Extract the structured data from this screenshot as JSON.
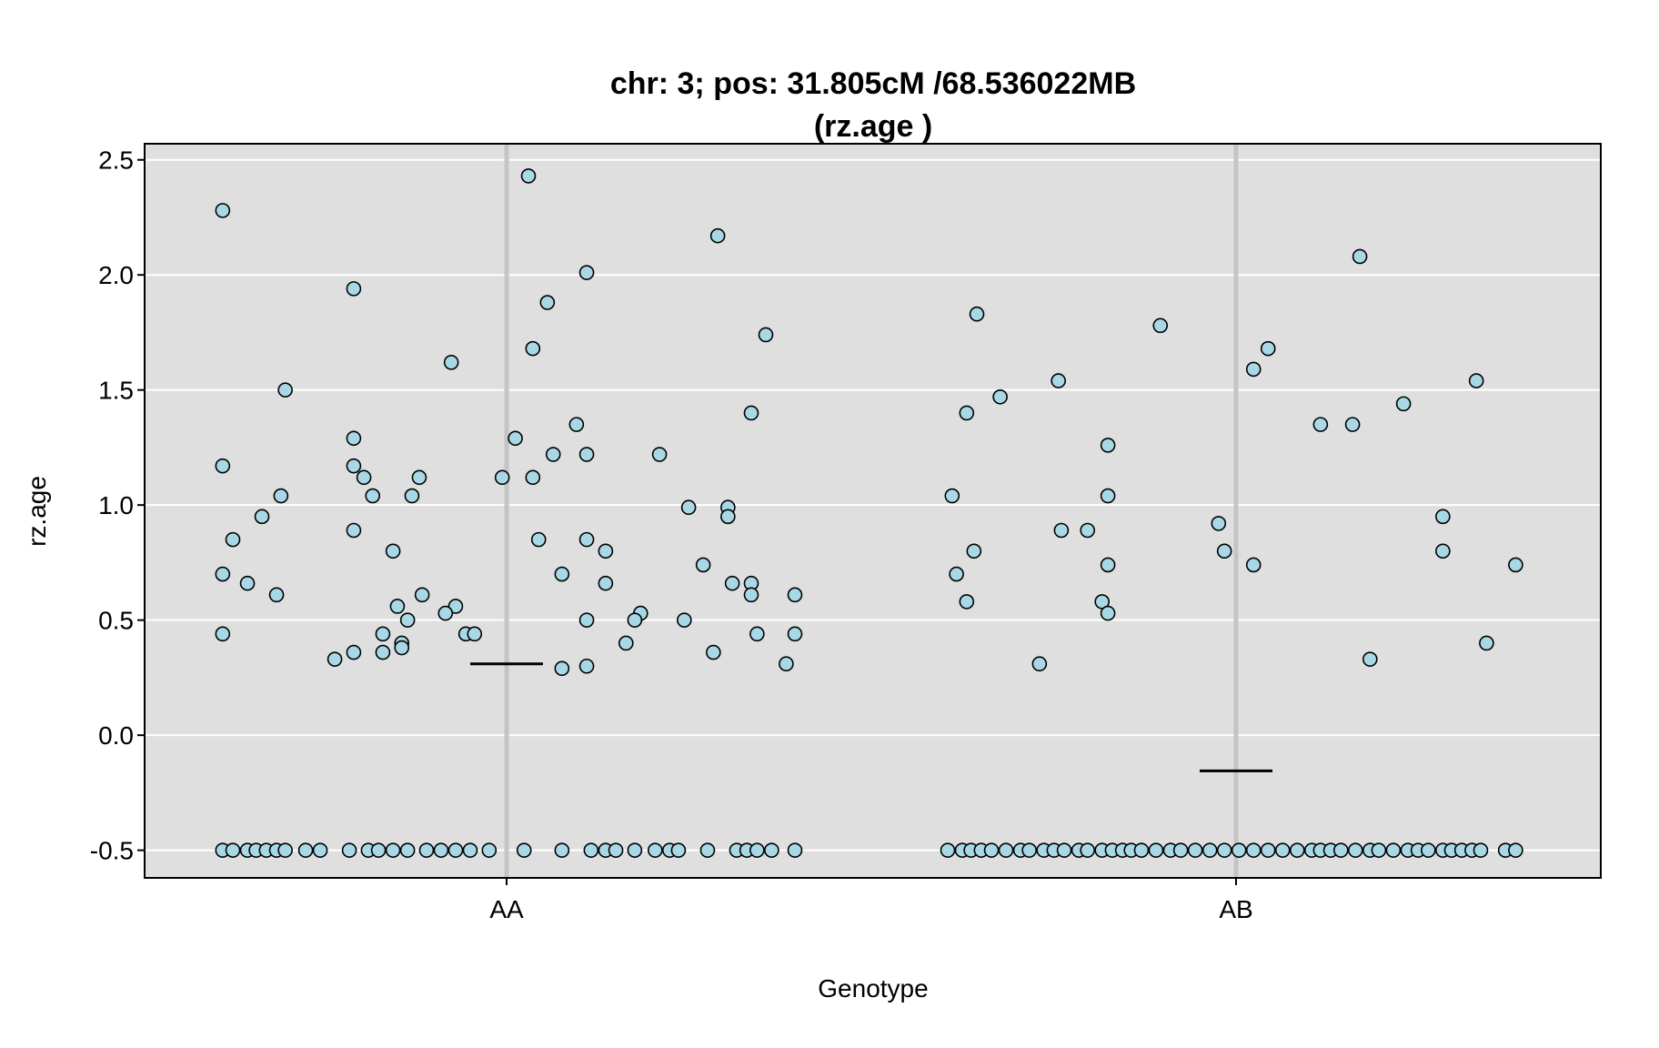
{
  "chart_data": {
    "type": "scatter",
    "title_line1": "chr: 3; pos: 31.805cM /68.536022MB",
    "title_line2": "(rz.age )",
    "xlabel": "Genotype",
    "ylabel": "rz.age",
    "categories": [
      "AA",
      "AB"
    ],
    "ylim": [
      -0.62,
      2.57
    ],
    "yticks": [
      -0.5,
      0.0,
      0.5,
      1.0,
      1.5,
      2.0,
      2.5
    ],
    "ytick_labels": [
      "-0.5",
      "0.0",
      "0.5",
      "1.0",
      "1.5",
      "2.0",
      "2.5"
    ],
    "grid": true,
    "colors": {
      "panel_bg": "#dfdfdf",
      "grid": "#ffffff",
      "category_line": "#c4c4c4",
      "point_fill": "#a8d8e6",
      "point_stroke": "#000000",
      "mean_line": "#000000"
    },
    "means": [
      {
        "category": "AA",
        "value": 0.31
      },
      {
        "category": "AB",
        "value": -0.155
      }
    ],
    "series": [
      {
        "category": "AA",
        "points": [
          {
            "x": -0.195,
            "y": 2.28
          },
          {
            "x": 0.015,
            "y": 2.43
          },
          {
            "x": 0.145,
            "y": 2.17
          },
          {
            "x": -0.105,
            "y": 1.94
          },
          {
            "x": 0.055,
            "y": 2.01
          },
          {
            "x": 0.028,
            "y": 1.88
          },
          {
            "x": 0.178,
            "y": 1.74
          },
          {
            "x": -0.038,
            "y": 1.62
          },
          {
            "x": 0.018,
            "y": 1.68
          },
          {
            "x": -0.152,
            "y": 1.5
          },
          {
            "x": 0.168,
            "y": 1.4
          },
          {
            "x": 0.048,
            "y": 1.35
          },
          {
            "x": -0.105,
            "y": 1.29
          },
          {
            "x": 0.006,
            "y": 1.29
          },
          {
            "x": -0.195,
            "y": 1.17
          },
          {
            "x": -0.105,
            "y": 1.17
          },
          {
            "x": 0.032,
            "y": 1.22
          },
          {
            "x": 0.055,
            "y": 1.22
          },
          {
            "x": 0.105,
            "y": 1.22
          },
          {
            "x": -0.098,
            "y": 1.12
          },
          {
            "x": -0.06,
            "y": 1.12
          },
          {
            "x": -0.003,
            "y": 1.12
          },
          {
            "x": 0.018,
            "y": 1.12
          },
          {
            "x": -0.155,
            "y": 1.04
          },
          {
            "x": -0.092,
            "y": 1.04
          },
          {
            "x": -0.065,
            "y": 1.04
          },
          {
            "x": 0.125,
            "y": 0.99
          },
          {
            "x": 0.152,
            "y": 0.99
          },
          {
            "x": -0.168,
            "y": 0.95
          },
          {
            "x": 0.152,
            "y": 0.95
          },
          {
            "x": -0.105,
            "y": 0.89
          },
          {
            "x": -0.188,
            "y": 0.85
          },
          {
            "x": 0.022,
            "y": 0.85
          },
          {
            "x": 0.055,
            "y": 0.85
          },
          {
            "x": -0.078,
            "y": 0.8
          },
          {
            "x": 0.068,
            "y": 0.8
          },
          {
            "x": 0.135,
            "y": 0.74
          },
          {
            "x": -0.195,
            "y": 0.7
          },
          {
            "x": 0.038,
            "y": 0.7
          },
          {
            "x": -0.178,
            "y": 0.66
          },
          {
            "x": 0.068,
            "y": 0.66
          },
          {
            "x": 0.155,
            "y": 0.66
          },
          {
            "x": 0.168,
            "y": 0.66
          },
          {
            "x": -0.158,
            "y": 0.61
          },
          {
            "x": -0.058,
            "y": 0.61
          },
          {
            "x": 0.168,
            "y": 0.61
          },
          {
            "x": 0.198,
            "y": 0.61
          },
          {
            "x": -0.075,
            "y": 0.56
          },
          {
            "x": -0.035,
            "y": 0.56
          },
          {
            "x": 0.092,
            "y": 0.53
          },
          {
            "x": -0.042,
            "y": 0.53
          },
          {
            "x": -0.068,
            "y": 0.5
          },
          {
            "x": 0.055,
            "y": 0.5
          },
          {
            "x": 0.088,
            "y": 0.5
          },
          {
            "x": 0.122,
            "y": 0.5
          },
          {
            "x": -0.195,
            "y": 0.44
          },
          {
            "x": -0.085,
            "y": 0.44
          },
          {
            "x": -0.028,
            "y": 0.44
          },
          {
            "x": -0.022,
            "y": 0.44
          },
          {
            "x": 0.172,
            "y": 0.44
          },
          {
            "x": 0.198,
            "y": 0.44
          },
          {
            "x": -0.072,
            "y": 0.4
          },
          {
            "x": 0.082,
            "y": 0.4
          },
          {
            "x": -0.072,
            "y": 0.38
          },
          {
            "x": -0.105,
            "y": 0.36
          },
          {
            "x": -0.085,
            "y": 0.36
          },
          {
            "x": 0.142,
            "y": 0.36
          },
          {
            "x": -0.118,
            "y": 0.33
          },
          {
            "x": 0.192,
            "y": 0.31
          },
          {
            "x": 0.055,
            "y": 0.3
          },
          {
            "x": 0.038,
            "y": 0.29
          },
          {
            "x": -0.195,
            "y": -0.5
          },
          {
            "x": -0.188,
            "y": -0.5
          },
          {
            "x": -0.178,
            "y": -0.5
          },
          {
            "x": -0.172,
            "y": -0.5
          },
          {
            "x": -0.165,
            "y": -0.5
          },
          {
            "x": -0.158,
            "y": -0.5
          },
          {
            "x": -0.152,
            "y": -0.5
          },
          {
            "x": -0.138,
            "y": -0.5
          },
          {
            "x": -0.128,
            "y": -0.5
          },
          {
            "x": -0.108,
            "y": -0.5
          },
          {
            "x": -0.095,
            "y": -0.5
          },
          {
            "x": -0.088,
            "y": -0.5
          },
          {
            "x": -0.078,
            "y": -0.5
          },
          {
            "x": -0.068,
            "y": -0.5
          },
          {
            "x": -0.055,
            "y": -0.5
          },
          {
            "x": -0.045,
            "y": -0.5
          },
          {
            "x": -0.035,
            "y": -0.5
          },
          {
            "x": -0.025,
            "y": -0.5
          },
          {
            "x": -0.012,
            "y": -0.5
          },
          {
            "x": 0.012,
            "y": -0.5
          },
          {
            "x": 0.038,
            "y": -0.5
          },
          {
            "x": 0.058,
            "y": -0.5
          },
          {
            "x": 0.068,
            "y": -0.5
          },
          {
            "x": 0.075,
            "y": -0.5
          },
          {
            "x": 0.088,
            "y": -0.5
          },
          {
            "x": 0.102,
            "y": -0.5
          },
          {
            "x": 0.112,
            "y": -0.5
          },
          {
            "x": 0.118,
            "y": -0.5
          },
          {
            "x": 0.138,
            "y": -0.5
          },
          {
            "x": 0.158,
            "y": -0.5
          },
          {
            "x": 0.165,
            "y": -0.5
          },
          {
            "x": 0.172,
            "y": -0.5
          },
          {
            "x": 0.182,
            "y": -0.5
          },
          {
            "x": 0.198,
            "y": -0.5
          }
        ]
      },
      {
        "category": "AB",
        "points": [
          {
            "x": 0.085,
            "y": 2.08
          },
          {
            "x": -0.178,
            "y": 1.83
          },
          {
            "x": -0.052,
            "y": 1.78
          },
          {
            "x": 0.022,
            "y": 1.68
          },
          {
            "x": 0.012,
            "y": 1.59
          },
          {
            "x": -0.122,
            "y": 1.54
          },
          {
            "x": 0.165,
            "y": 1.54
          },
          {
            "x": -0.162,
            "y": 1.47
          },
          {
            "x": 0.115,
            "y": 1.44
          },
          {
            "x": -0.185,
            "y": 1.4
          },
          {
            "x": 0.058,
            "y": 1.35
          },
          {
            "x": 0.08,
            "y": 1.35
          },
          {
            "x": -0.088,
            "y": 1.26
          },
          {
            "x": -0.195,
            "y": 1.04
          },
          {
            "x": -0.088,
            "y": 1.04
          },
          {
            "x": 0.142,
            "y": 0.95
          },
          {
            "x": -0.012,
            "y": 0.92
          },
          {
            "x": -0.12,
            "y": 0.89
          },
          {
            "x": -0.102,
            "y": 0.89
          },
          {
            "x": -0.18,
            "y": 0.8
          },
          {
            "x": -0.008,
            "y": 0.8
          },
          {
            "x": 0.142,
            "y": 0.8
          },
          {
            "x": -0.088,
            "y": 0.74
          },
          {
            "x": 0.012,
            "y": 0.74
          },
          {
            "x": 0.192,
            "y": 0.74
          },
          {
            "x": -0.192,
            "y": 0.7
          },
          {
            "x": -0.185,
            "y": 0.58
          },
          {
            "x": -0.092,
            "y": 0.58
          },
          {
            "x": -0.088,
            "y": 0.53
          },
          {
            "x": 0.172,
            "y": 0.4
          },
          {
            "x": 0.092,
            "y": 0.33
          },
          {
            "x": -0.135,
            "y": 0.31
          },
          {
            "x": -0.198,
            "y": -0.5
          },
          {
            "x": -0.188,
            "y": -0.5
          },
          {
            "x": -0.182,
            "y": -0.5
          },
          {
            "x": -0.175,
            "y": -0.5
          },
          {
            "x": -0.168,
            "y": -0.5
          },
          {
            "x": -0.158,
            "y": -0.5
          },
          {
            "x": -0.148,
            "y": -0.5
          },
          {
            "x": -0.142,
            "y": -0.5
          },
          {
            "x": -0.132,
            "y": -0.5
          },
          {
            "x": -0.125,
            "y": -0.5
          },
          {
            "x": -0.118,
            "y": -0.5
          },
          {
            "x": -0.108,
            "y": -0.5
          },
          {
            "x": -0.102,
            "y": -0.5
          },
          {
            "x": -0.092,
            "y": -0.5
          },
          {
            "x": -0.085,
            "y": -0.5
          },
          {
            "x": -0.078,
            "y": -0.5
          },
          {
            "x": -0.072,
            "y": -0.5
          },
          {
            "x": -0.065,
            "y": -0.5
          },
          {
            "x": -0.055,
            "y": -0.5
          },
          {
            "x": -0.045,
            "y": -0.5
          },
          {
            "x": -0.038,
            "y": -0.5
          },
          {
            "x": -0.028,
            "y": -0.5
          },
          {
            "x": -0.018,
            "y": -0.5
          },
          {
            "x": -0.008,
            "y": -0.5
          },
          {
            "x": 0.002,
            "y": -0.5
          },
          {
            "x": 0.012,
            "y": -0.5
          },
          {
            "x": 0.022,
            "y": -0.5
          },
          {
            "x": 0.032,
            "y": -0.5
          },
          {
            "x": 0.042,
            "y": -0.5
          },
          {
            "x": 0.052,
            "y": -0.5
          },
          {
            "x": 0.058,
            "y": -0.5
          },
          {
            "x": 0.065,
            "y": -0.5
          },
          {
            "x": 0.072,
            "y": -0.5
          },
          {
            "x": 0.082,
            "y": -0.5
          },
          {
            "x": 0.092,
            "y": -0.5
          },
          {
            "x": 0.098,
            "y": -0.5
          },
          {
            "x": 0.108,
            "y": -0.5
          },
          {
            "x": 0.118,
            "y": -0.5
          },
          {
            "x": 0.125,
            "y": -0.5
          },
          {
            "x": 0.132,
            "y": -0.5
          },
          {
            "x": 0.142,
            "y": -0.5
          },
          {
            "x": 0.148,
            "y": -0.5
          },
          {
            "x": 0.155,
            "y": -0.5
          },
          {
            "x": 0.162,
            "y": -0.5
          },
          {
            "x": 0.168,
            "y": -0.5
          },
          {
            "x": 0.185,
            "y": -0.5
          },
          {
            "x": 0.192,
            "y": -0.5
          }
        ]
      }
    ]
  }
}
